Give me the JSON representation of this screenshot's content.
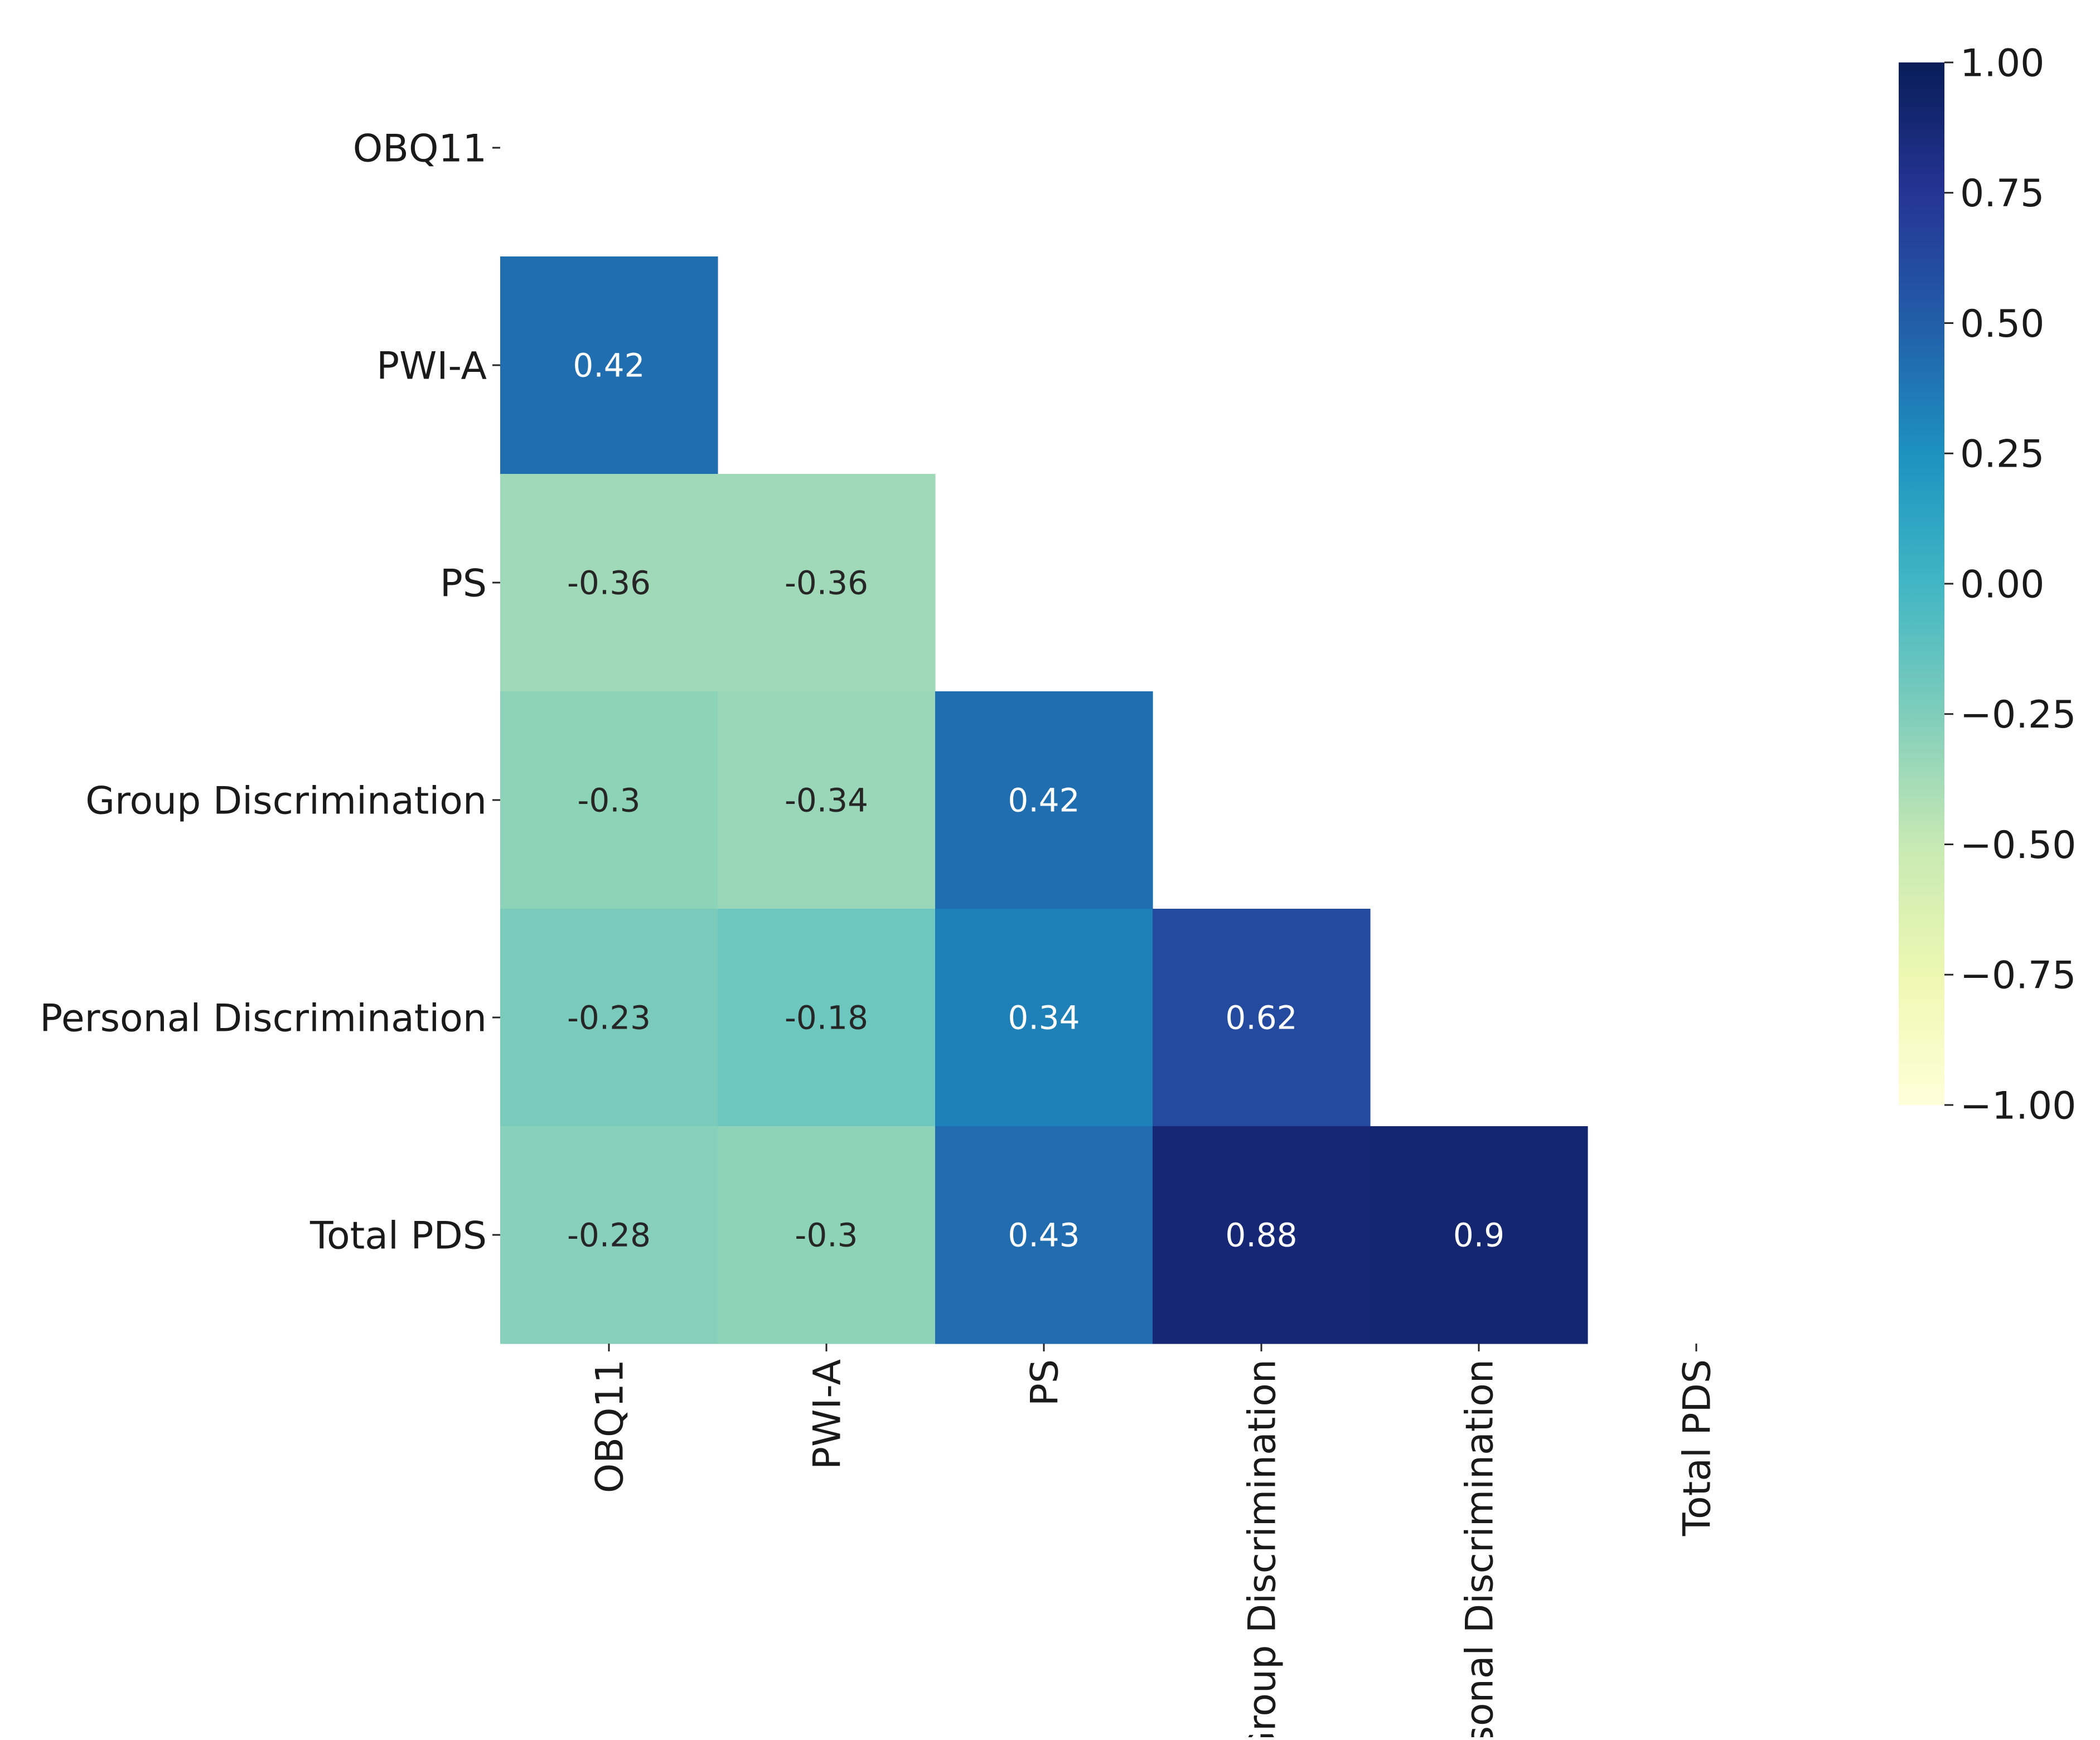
{
  "chart_data": {
    "type": "heatmap",
    "title": "",
    "xlabel": "",
    "ylabel": "",
    "variables": [
      "OBQ11",
      "PWI-A",
      "PS",
      "Group Discrimination",
      "Personal Discrimination",
      "Total PDS"
    ],
    "mask": "upper-triangle-including-diagonal",
    "cells": [
      {
        "row": "PWI-A",
        "col": "OBQ11",
        "value": 0.42,
        "label": "0.42"
      },
      {
        "row": "PS",
        "col": "OBQ11",
        "value": -0.36,
        "label": "-0.36"
      },
      {
        "row": "PS",
        "col": "PWI-A",
        "value": -0.36,
        "label": "-0.36"
      },
      {
        "row": "Group Discrimination",
        "col": "OBQ11",
        "value": -0.3,
        "label": "-0.3"
      },
      {
        "row": "Group Discrimination",
        "col": "PWI-A",
        "value": -0.34,
        "label": "-0.34"
      },
      {
        "row": "Group Discrimination",
        "col": "PS",
        "value": 0.42,
        "label": "0.42"
      },
      {
        "row": "Personal Discrimination",
        "col": "OBQ11",
        "value": -0.23,
        "label": "-0.23"
      },
      {
        "row": "Personal Discrimination",
        "col": "PWI-A",
        "value": -0.18,
        "label": "-0.18"
      },
      {
        "row": "Personal Discrimination",
        "col": "PS",
        "value": 0.34,
        "label": "0.34"
      },
      {
        "row": "Personal Discrimination",
        "col": "Group Discrimination",
        "value": 0.62,
        "label": "0.62"
      },
      {
        "row": "Total PDS",
        "col": "OBQ11",
        "value": -0.28,
        "label": "-0.28"
      },
      {
        "row": "Total PDS",
        "col": "PWI-A",
        "value": -0.3,
        "label": "-0.3"
      },
      {
        "row": "Total PDS",
        "col": "PS",
        "value": 0.43,
        "label": "0.43"
      },
      {
        "row": "Total PDS",
        "col": "Group Discrimination",
        "value": 0.88,
        "label": "0.88"
      },
      {
        "row": "Total PDS",
        "col": "Personal Discrimination",
        "value": 0.9,
        "label": "0.9"
      }
    ],
    "colorbar": {
      "colormap": "YlGnBu",
      "range": [
        -1.0,
        1.0
      ],
      "ticks": [
        1.0,
        0.75,
        0.5,
        0.25,
        0.0,
        -0.25,
        -0.5,
        -0.75,
        -1.0
      ],
      "tick_labels": [
        "1.00",
        "0.75",
        "0.50",
        "0.25",
        "0.00",
        "−0.25",
        "−0.50",
        "−0.75",
        "−1.00"
      ]
    },
    "grid": false,
    "legend": "colorbar-right"
  }
}
